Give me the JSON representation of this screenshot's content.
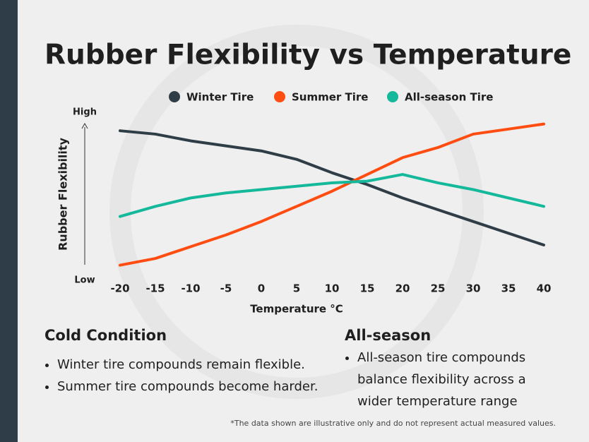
{
  "chart_data": {
    "type": "line",
    "title": "Rubber Flexibility vs Temperature",
    "x_label": "Temperature °C",
    "y_label": "Rubber Flexibility",
    "x": [
      -20,
      -15,
      -10,
      -5,
      0,
      5,
      10,
      15,
      20,
      25,
      30,
      35,
      40
    ],
    "xlim": [
      -20,
      40
    ],
    "xticks": [
      -20,
      -15,
      -10,
      -5,
      0,
      5,
      10,
      15,
      20,
      25,
      30,
      35,
      40
    ],
    "ylim": [
      0,
      100
    ],
    "yticks": [
      {
        "value": 0,
        "label": "Low"
      },
      {
        "value": 100,
        "label": "High"
      }
    ],
    "legend": "top",
    "series": [
      {
        "name": "Winter Tire",
        "color": "#2f3d47",
        "values": [
          89,
          87,
          83,
          80,
          77,
          72,
          64,
          57,
          49,
          42,
          35,
          28,
          21
        ]
      },
      {
        "name": "Summer Tire",
        "color": "#ff4d12",
        "values": [
          9,
          13,
          20,
          27,
          35,
          44,
          53,
          63,
          73,
          79,
          87,
          90,
          93
        ]
      },
      {
        "name": "All-season Tire",
        "color": "#14b89a",
        "values": [
          38,
          44,
          49,
          52,
          54,
          56,
          58,
          59,
          63,
          58,
          54,
          49,
          44
        ]
      }
    ]
  },
  "panels": [
    {
      "heading": "Cold Condition",
      "bullets": [
        "Winter tire compounds remain flexible.",
        "Summer tire compounds become harder."
      ]
    },
    {
      "heading": "All-season",
      "bullets": [
        "All-season tire compounds balance flexibility across a wider temperature range"
      ]
    }
  ],
  "footnote": "*The data shown are illustrative only and do not represent actual measured values."
}
